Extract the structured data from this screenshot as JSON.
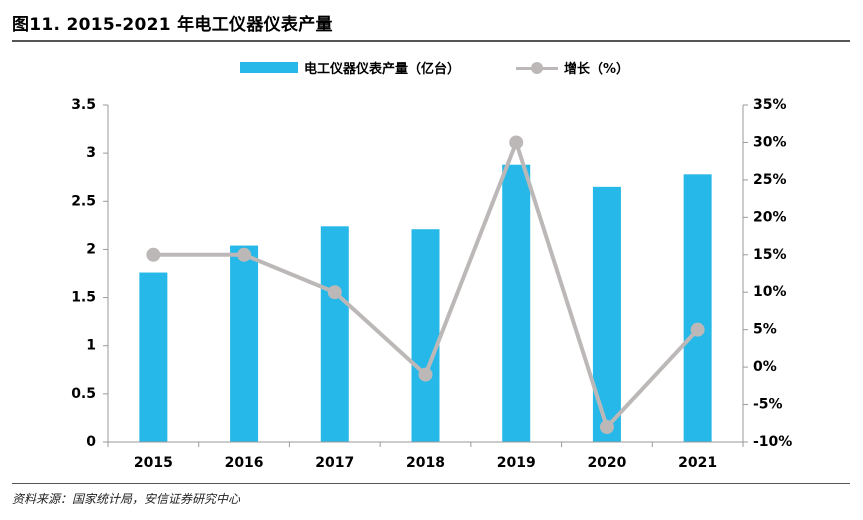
{
  "figure": {
    "title": "图11. 2015-2021 年电工仪器仪表产量",
    "source": "资料来源：国家统计局，安信证券研究中心"
  },
  "chart_data": {
    "type": "bar",
    "categories": [
      "2015",
      "2016",
      "2017",
      "2018",
      "2019",
      "2020",
      "2021"
    ],
    "series": [
      {
        "name": "电工仪器仪表产量（亿台）",
        "type": "bar",
        "axis": "left",
        "color": "#26B8E8",
        "values": [
          1.76,
          2.04,
          2.24,
          2.21,
          2.88,
          2.65,
          2.78
        ]
      },
      {
        "name": "增长（%）",
        "type": "line",
        "axis": "right",
        "color": "#BDB8B8",
        "values": [
          15,
          15,
          10,
          -1,
          30,
          -8,
          5
        ]
      }
    ],
    "y_left": {
      "ylim": [
        0,
        3.5
      ],
      "ticks": [
        "0",
        "0.5",
        "1",
        "1.5",
        "2",
        "2.5",
        "3",
        "3.5"
      ]
    },
    "y_right": {
      "ylim": [
        -10,
        35
      ],
      "ticks": [
        "-10%",
        "-5%",
        "0%",
        "5%",
        "10%",
        "15%",
        "20%",
        "25%",
        "30%",
        "35%"
      ]
    },
    "grid": false,
    "legend_position": "top-center"
  }
}
